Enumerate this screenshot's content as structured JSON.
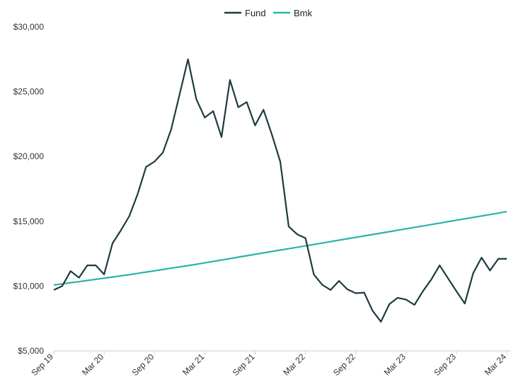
{
  "chart_data": {
    "type": "line",
    "title": "",
    "xlabel": "",
    "ylabel": "",
    "legend": {
      "placement": "top-center"
    },
    "grid": false,
    "ylim": [
      5000,
      30000
    ],
    "y_ticks": [
      5000,
      10000,
      15000,
      20000,
      25000,
      30000
    ],
    "y_tick_labels": [
      "$5,000",
      "$10,000",
      "$15,000",
      "$20,000",
      "$25,000",
      "$30,000"
    ],
    "x_ticks": [
      "2019-09",
      "2020-03",
      "2020-09",
      "2021-03",
      "2021-09",
      "2022-03",
      "2022-09",
      "2023-03",
      "2023-09",
      "2024-03"
    ],
    "x_tick_labels": [
      "Sep 19",
      "Mar 20",
      "Sep 20",
      "Mar 21",
      "Sep 21",
      "Mar 22",
      "Sep 22",
      "Mar 23",
      "Sep 23",
      "Mar 24"
    ],
    "x": [
      "2019-09",
      "2019-10",
      "2019-11",
      "2019-12",
      "2020-01",
      "2020-02",
      "2020-03",
      "2020-04",
      "2020-05",
      "2020-06",
      "2020-07",
      "2020-08",
      "2020-09",
      "2020-10",
      "2020-11",
      "2020-12",
      "2021-01",
      "2021-02",
      "2021-03",
      "2021-04",
      "2021-05",
      "2021-06",
      "2021-07",
      "2021-08",
      "2021-09",
      "2021-10",
      "2021-11",
      "2021-12",
      "2022-01",
      "2022-02",
      "2022-03",
      "2022-04",
      "2022-05",
      "2022-06",
      "2022-07",
      "2022-08",
      "2022-09",
      "2022-10",
      "2022-11",
      "2022-12",
      "2023-01",
      "2023-02",
      "2023-03",
      "2023-04",
      "2023-05",
      "2023-06",
      "2023-07",
      "2023-08",
      "2023-09",
      "2023-10",
      "2023-11",
      "2023-12",
      "2024-01",
      "2024-02",
      "2024-03"
    ],
    "series": [
      {
        "name": "Fund",
        "color": "#1e3b3f",
        "values": [
          9700,
          10000,
          11150,
          10650,
          11600,
          11600,
          10900,
          13300,
          14300,
          15400,
          17100,
          19200,
          19600,
          20300,
          22100,
          24800,
          27500,
          24400,
          23000,
          23500,
          21500,
          25900,
          23800,
          24200,
          22400,
          23600,
          21700,
          19600,
          14600,
          14000,
          13700,
          10900,
          10100,
          9700,
          10400,
          9750,
          9450,
          9500,
          8100,
          7250,
          8600,
          9100,
          8950,
          8550,
          9600,
          10500,
          11600,
          10600,
          9600,
          8650,
          11000,
          12200,
          11200,
          12100,
          12100
        ]
      },
      {
        "name": "Bmk",
        "color": "#2bb3a6",
        "values": [
          10080,
          10170,
          10260,
          10340,
          10430,
          10520,
          10610,
          10700,
          10790,
          10880,
          10980,
          11080,
          11180,
          11280,
          11380,
          11480,
          11580,
          11680,
          11790,
          11900,
          12010,
          12120,
          12230,
          12340,
          12450,
          12560,
          12670,
          12780,
          12880,
          12990,
          13100,
          13210,
          13320,
          13430,
          13540,
          13650,
          13760,
          13870,
          13980,
          14090,
          14200,
          14310,
          14420,
          14530,
          14640,
          14750,
          14860,
          14970,
          15080,
          15190,
          15300,
          15410,
          15520,
          15630,
          15750
        ]
      }
    ]
  }
}
